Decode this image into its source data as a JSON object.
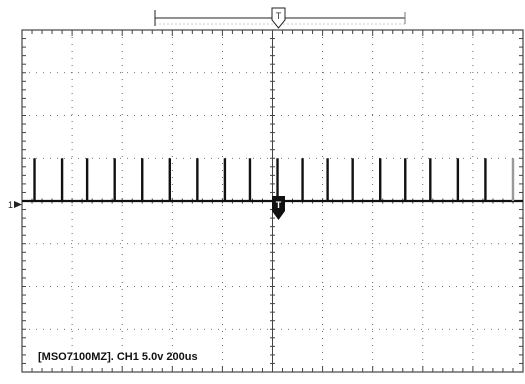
{
  "scope": {
    "readout": "[MSO7100MZ]. CH1 5.0v 200us",
    "channel_marker": "1",
    "trigger_marker": "T",
    "trigger_position_marker": "T",
    "grid": {
      "horizontal_divisions": 10,
      "vertical_divisions": 8
    },
    "colors": {
      "trace": "#111111",
      "grid": "#444444",
      "background": "#ffffff"
    }
  },
  "chart_data": {
    "type": "line",
    "title": "",
    "xlabel": "",
    "ylabel": "",
    "channel": "CH1",
    "vertical_scale": "5.0v",
    "horizontal_scale": "200us",
    "xlim": [
      0,
      10
    ],
    "ylim": [
      -4,
      4
    ],
    "baseline": 0,
    "pulse_height": 1,
    "pulse_times": [
      0.25,
      0.8,
      1.3,
      1.85,
      2.4,
      2.95,
      3.5,
      4.05,
      4.55,
      5.1,
      5.6,
      6.1,
      6.6,
      7.15,
      7.65,
      8.15,
      8.7,
      9.25,
      9.8
    ]
  }
}
